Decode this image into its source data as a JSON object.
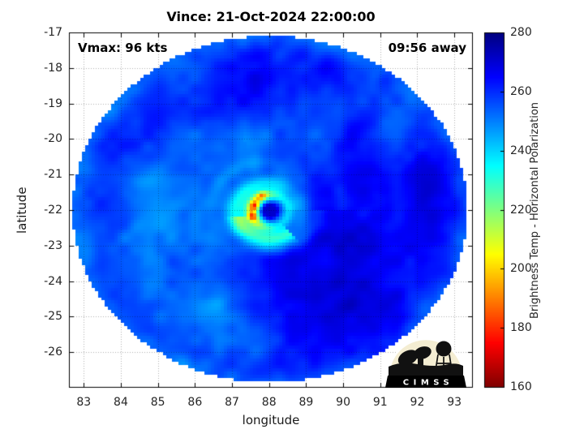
{
  "title": "Vince: 21-Oct-2024 22:00:00",
  "annotations": {
    "vmax": "Vmax: 96 kts",
    "time_away": "09:56 away"
  },
  "axes": {
    "xlabel": "longitude",
    "ylabel": "latitude"
  },
  "colorbar": {
    "label": "Brightness Temp - Horizontal Polarization",
    "ticks": [
      160,
      180,
      200,
      220,
      240,
      260,
      280
    ],
    "min": 160,
    "max": 280,
    "colormap": "jet-reversed",
    "top_color": "#000080",
    "bottom_color": "#800000"
  },
  "logo": {
    "text": "CIMSS"
  },
  "chart_data": {
    "type": "heatmap",
    "title": "Vince: 21-Oct-2024 22:00:00",
    "xlabel": "longitude",
    "ylabel": "latitude",
    "xlim": [
      82.6,
      93.5
    ],
    "ylim": [
      -27,
      -17
    ],
    "x_ticks": [
      83,
      84,
      85,
      86,
      87,
      88,
      89,
      90,
      91,
      92,
      93
    ],
    "y_ticks": [
      -17,
      -18,
      -19,
      -20,
      -21,
      -22,
      -23,
      -24,
      -25,
      -26
    ],
    "grid": true,
    "legend_position": "colorbar-right",
    "colorbar": {
      "label": "Brightness Temp - Horizontal Polarization",
      "ticks": [
        160,
        180,
        200,
        220,
        240,
        260,
        280
      ],
      "min": 160,
      "max": 280
    },
    "storm": {
      "name": "Vince",
      "datetime": "21-Oct-2024 22:00:00",
      "vmax_kts": 96,
      "time_offset_label": "09:56 away",
      "center_lon": 88.05,
      "center_lat": -22.05
    },
    "swath": {
      "center_lon": 88.05,
      "center_lat": -22.0,
      "radius_lon_deg": 5.35,
      "radius_lat_deg": 4.9
    },
    "field": {
      "base_K": 257.5,
      "octaves": [
        {
          "scale": 1.05,
          "amp": 4.5
        },
        {
          "scale": 3.1,
          "amp": 2.5
        }
      ],
      "streak_amp": 2.0,
      "rim_cool_K": 5,
      "features": [
        {
          "x": 90.6,
          "y": -23.3,
          "r": 2.6,
          "dT": 7
        },
        {
          "x": 91.5,
          "y": -21.0,
          "r": 1.8,
          "dT": 5
        },
        {
          "x": 89.3,
          "y": -25.0,
          "r": 1.8,
          "dT": 5
        },
        {
          "x": 88.6,
          "y": -18.6,
          "r": 1.5,
          "dT": 4
        },
        {
          "x": 86.9,
          "y": -18.3,
          "r": 1.0,
          "dT": 3
        },
        {
          "x": 85.7,
          "y": -22.5,
          "r": 1.4,
          "dT": -7
        },
        {
          "x": 84.9,
          "y": -21.7,
          "r": 0.9,
          "dT": -5
        },
        {
          "x": 87.8,
          "y": -25.4,
          "r": 1.1,
          "dT": -6
        },
        {
          "x": 86.3,
          "y": -24.6,
          "r": 0.9,
          "dT": -5
        },
        {
          "x": 91.3,
          "y": -20.1,
          "r": 0.7,
          "dT": -7
        },
        {
          "x": 86.8,
          "y": -20.4,
          "r": 0.8,
          "dT": -8
        },
        {
          "x": 87.8,
          "y": -19.8,
          "r": 0.6,
          "dT": -6
        },
        {
          "x": 88.9,
          "y": -20.1,
          "r": 0.7,
          "dT": -5
        }
      ],
      "spiral": {
        "r_start": 0.6,
        "growth_per_turn": 0.62,
        "turns": 2.3,
        "width_deg": 0.2,
        "dT": -12
      },
      "core": {
        "ring_radius_deg": 0.44,
        "ring_width_deg": 0.16,
        "ring_dT": -50,
        "ring_az_peak_deg": 170,
        "ring_az_sigma_deg": 80,
        "ring_az_floor": 0.35,
        "hot_spots": [
          {
            "az": 115,
            "r": 0.48,
            "dT": -26,
            "az_sigma": 16
          },
          {
            "az": 160,
            "r": 0.4,
            "dT": -24,
            "az_sigma": 14
          },
          {
            "az": 200,
            "r": 0.46,
            "dT": -26,
            "az_sigma": 13
          }
        ],
        "tail": {
          "az_from": 190,
          "az_to": 310,
          "r": 0.78,
          "r_sigma": 0.22,
          "dT": -20
        },
        "halo": {
          "r": 0.72,
          "r_sigma": 0.34,
          "dT": -14
        },
        "eye": {
          "radius_deg": 0.17,
          "temp_K": 271
        }
      }
    }
  }
}
